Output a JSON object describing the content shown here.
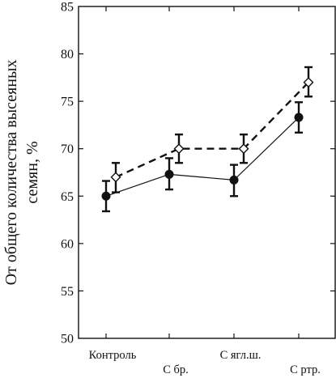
{
  "chart_data": {
    "type": "line",
    "ylabel_line1": "От общего количества высеяных",
    "ylabel_line2": "семян, %",
    "ylim": [
      50,
      85
    ],
    "yticks": [
      50,
      55,
      60,
      65,
      70,
      75,
      80,
      85
    ],
    "categories": [
      "Контроль",
      "С бр.",
      "С ягл.ш.",
      "С ртр."
    ],
    "grid": false,
    "legend": "none",
    "series": [
      {
        "style": "dashed-open-diamond",
        "values": [
          67.0,
          70.0,
          70.0,
          77.0
        ],
        "err_low": [
          65.4,
          68.5,
          68.5,
          75.5
        ],
        "err_high": [
          68.5,
          71.5,
          71.5,
          78.6
        ]
      },
      {
        "style": "solid-filled-circle",
        "values": [
          65.0,
          67.3,
          66.7,
          73.3
        ],
        "err_low": [
          63.4,
          65.7,
          65.0,
          71.7
        ],
        "err_high": [
          66.6,
          69.0,
          68.3,
          74.9
        ]
      }
    ]
  }
}
